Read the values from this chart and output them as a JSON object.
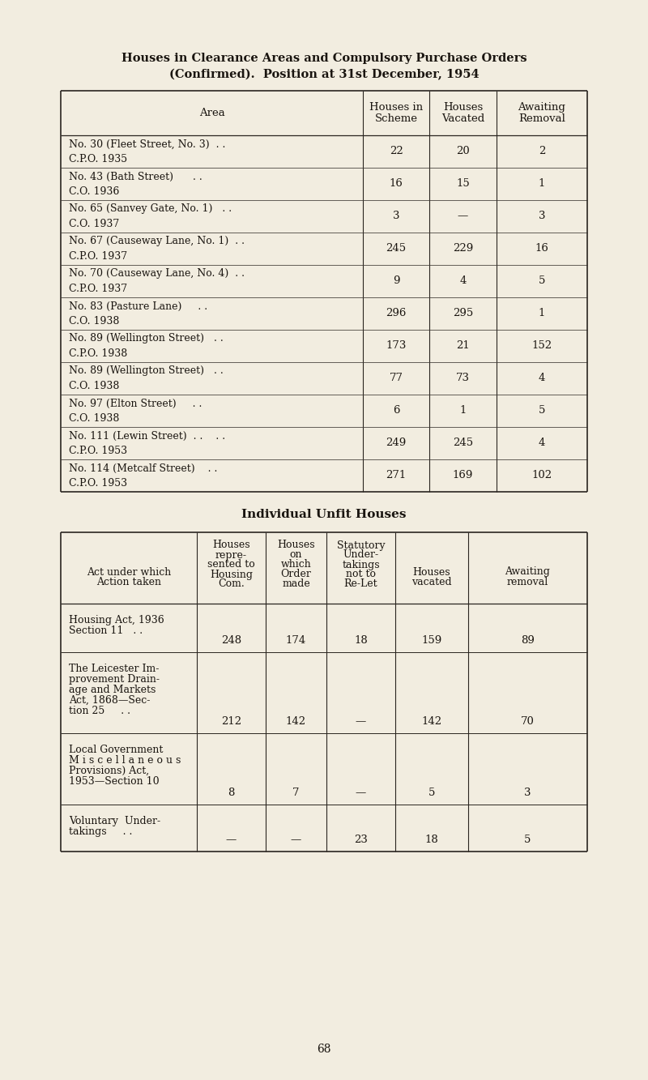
{
  "bg_color": "#f2ede0",
  "title_line1": "Houses in Clearance Areas and Compulsory Purchase Orders",
  "title_line2": "(Confirmed).  Position at 31st December, 1954",
  "table1_rows": [
    [
      "No. 30 (Fleet Street, No. 3)  . .",
      "C.P.O. 1935",
      "22",
      "20",
      "2"
    ],
    [
      "No. 43 (Bath Street)      . .",
      "C.O. 1936",
      "16",
      "15",
      "1"
    ],
    [
      "No. 65 (Sanvey Gate, No. 1)   . .",
      "C.O. 1937",
      "3",
      "—",
      "3"
    ],
    [
      "No. 67 (Causeway Lane, No. 1)  . .",
      "C.P.O. 1937",
      "245",
      "229",
      "16"
    ],
    [
      "No. 70 (Causeway Lane, No. 4)  . .",
      "C.P.O. 1937",
      "9",
      "4",
      "5"
    ],
    [
      "No. 83 (Pasture Lane)     . .",
      "C.O. 1938",
      "296",
      "295",
      "1"
    ],
    [
      "No. 89 (Wellington Street)   . .",
      "C.P.O. 1938",
      "173",
      "21",
      "152"
    ],
    [
      "No. 89 (Wellington Street)   . .",
      "C.O. 1938",
      "77",
      "73",
      "4"
    ],
    [
      "No. 97 (Elton Street)     . .",
      "C.O. 1938",
      "6",
      "1",
      "5"
    ],
    [
      "No. 111 (Lewin Street)  . .    . .",
      "C.P.O. 1953",
      "249",
      "245",
      "4"
    ],
    [
      "No. 114 (Metcalf Street)    . .",
      "C.P.O. 1953",
      "271",
      "169",
      "102"
    ]
  ],
  "table2_title": "Individual Unfit Houses",
  "table2_rows": [
    [
      "Housing Act, 1936",
      "Section 11   . .",
      "248",
      "174",
      "18",
      "159",
      "89"
    ],
    [
      "The Leicester Im-\nprovement Drain-\nage and Markets\nAct, 1868—Sec-\ntion 25     . .",
      "",
      "212",
      "142",
      "—",
      "142",
      "70"
    ],
    [
      "Local Government\nM i s c e l l a n e o u s\nProvisions) Act,\n1953—Section 10",
      "",
      "8",
      "7",
      "—",
      "5",
      "3"
    ],
    [
      "Voluntary  Under-\ntakings     . .",
      "",
      "—",
      "—",
      "23",
      "18",
      "5"
    ]
  ],
  "page_number": "68",
  "text_color": "#1a1510",
  "line_color": "#2a2520",
  "bg_color2": "#f2ede0"
}
